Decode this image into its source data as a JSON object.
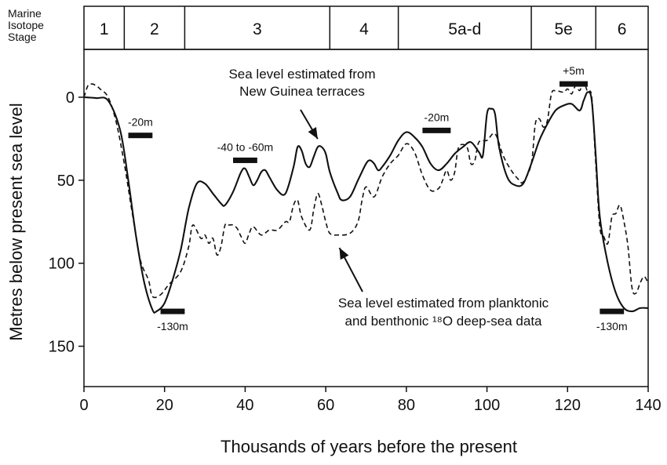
{
  "chart_data": {
    "type": "line",
    "stage_header": [
      "Marine",
      "Isotope",
      "Stage"
    ],
    "stages": [
      {
        "label": "1",
        "start": 0,
        "end": 10
      },
      {
        "label": "2",
        "start": 10,
        "end": 25
      },
      {
        "label": "3",
        "start": 25,
        "end": 61
      },
      {
        "label": "4",
        "start": 61,
        "end": 78
      },
      {
        "label": "5a-d",
        "start": 78,
        "end": 111
      },
      {
        "label": "5e",
        "start": 111,
        "end": 127
      },
      {
        "label": "6",
        "start": 127,
        "end": 140
      }
    ],
    "xlabel": "Thousands of years before the present",
    "ylabel": "Metres below present sea level",
    "xlim": [
      0,
      140
    ],
    "ylim": [
      0,
      175
    ],
    "y_top_extent": -30,
    "x_ticks": [
      0,
      20,
      40,
      60,
      80,
      100,
      120,
      140
    ],
    "y_ticks": [
      0,
      50,
      100,
      150
    ],
    "y_inverted": true,
    "series": [
      {
        "style": "solid",
        "points": [
          [
            0,
            0
          ],
          [
            3,
            0.5
          ],
          [
            6,
            2
          ],
          [
            9,
            20
          ],
          [
            11,
            50
          ],
          [
            13,
            85
          ],
          [
            15,
            112
          ],
          [
            17,
            128
          ],
          [
            18,
            129
          ],
          [
            20,
            124
          ],
          [
            22,
            110
          ],
          [
            24,
            92
          ],
          [
            26,
            67
          ],
          [
            28,
            52
          ],
          [
            30,
            52
          ],
          [
            32,
            58
          ],
          [
            34,
            64
          ],
          [
            35,
            65
          ],
          [
            37,
            57
          ],
          [
            39,
            45
          ],
          [
            40,
            43
          ],
          [
            41,
            48
          ],
          [
            42,
            53
          ],
          [
            43,
            50
          ],
          [
            44,
            45
          ],
          [
            45,
            44
          ],
          [
            46,
            48
          ],
          [
            48,
            56
          ],
          [
            50,
            58
          ],
          [
            52,
            42
          ],
          [
            53,
            30
          ],
          [
            54,
            32
          ],
          [
            55,
            40
          ],
          [
            56,
            42
          ],
          [
            57,
            36
          ],
          [
            58,
            30
          ],
          [
            59,
            30
          ],
          [
            60,
            34
          ],
          [
            61,
            45
          ],
          [
            63,
            58
          ],
          [
            64,
            62
          ],
          [
            66,
            60
          ],
          [
            68,
            50
          ],
          [
            70,
            40
          ],
          [
            71,
            38
          ],
          [
            72,
            40
          ],
          [
            73,
            44
          ],
          [
            74,
            42
          ],
          [
            76,
            35
          ],
          [
            78,
            26
          ],
          [
            80,
            21
          ],
          [
            82,
            24
          ],
          [
            84,
            30
          ],
          [
            86,
            40
          ],
          [
            88,
            44
          ],
          [
            90,
            40
          ],
          [
            92,
            34
          ],
          [
            94,
            30
          ],
          [
            96,
            27
          ],
          [
            98,
            33
          ],
          [
            99,
            35
          ],
          [
            100,
            10
          ],
          [
            101,
            7
          ],
          [
            102,
            10
          ],
          [
            103,
            30
          ],
          [
            105,
            48
          ],
          [
            107,
            53
          ],
          [
            109,
            52
          ],
          [
            111,
            40
          ],
          [
            113,
            26
          ],
          [
            115,
            16
          ],
          [
            117,
            8
          ],
          [
            119,
            5
          ],
          [
            121,
            4
          ],
          [
            123,
            8
          ],
          [
            124,
            2
          ],
          [
            125,
            -3
          ],
          [
            126,
            2
          ],
          [
            127,
            35
          ],
          [
            128,
            72
          ],
          [
            130,
            100
          ],
          [
            132,
            118
          ],
          [
            134,
            127
          ],
          [
            136,
            129
          ],
          [
            138,
            127
          ],
          [
            140,
            127
          ]
        ]
      },
      {
        "style": "dashed",
        "points": [
          [
            0,
            0
          ],
          [
            1,
            -7
          ],
          [
            2,
            -8
          ],
          [
            3,
            -7
          ],
          [
            4,
            -5
          ],
          [
            6,
            0
          ],
          [
            8,
            15
          ],
          [
            10,
            40
          ],
          [
            12,
            70
          ],
          [
            14,
            98
          ],
          [
            16,
            110
          ],
          [
            17,
            120
          ],
          [
            19,
            119
          ],
          [
            21,
            113
          ],
          [
            24,
            105
          ],
          [
            26,
            90
          ],
          [
            27,
            77
          ],
          [
            29,
            85
          ],
          [
            30,
            83
          ],
          [
            31,
            88
          ],
          [
            32,
            85
          ],
          [
            33,
            95
          ],
          [
            34,
            90
          ],
          [
            35,
            77
          ],
          [
            36,
            77
          ],
          [
            37,
            77
          ],
          [
            38,
            79
          ],
          [
            39,
            84
          ],
          [
            40,
            88
          ],
          [
            41,
            82
          ],
          [
            42,
            78
          ],
          [
            44,
            83
          ],
          [
            46,
            80
          ],
          [
            48,
            80
          ],
          [
            50,
            75
          ],
          [
            51,
            75
          ],
          [
            52,
            65
          ],
          [
            53,
            62
          ],
          [
            54,
            72
          ],
          [
            56,
            80
          ],
          [
            57,
            68
          ],
          [
            58,
            58
          ],
          [
            59,
            65
          ],
          [
            60,
            75
          ],
          [
            61,
            82
          ],
          [
            63,
            83
          ],
          [
            66,
            82
          ],
          [
            68,
            75
          ],
          [
            69,
            62
          ],
          [
            70,
            54
          ],
          [
            72,
            60
          ],
          [
            74,
            48
          ],
          [
            76,
            40
          ],
          [
            78,
            35
          ],
          [
            80,
            28
          ],
          [
            82,
            33
          ],
          [
            84,
            47
          ],
          [
            86,
            56
          ],
          [
            88,
            55
          ],
          [
            89,
            50
          ],
          [
            90,
            44
          ],
          [
            91,
            50
          ],
          [
            92,
            45
          ],
          [
            93,
            30
          ],
          [
            95,
            30
          ],
          [
            96,
            40
          ],
          [
            97,
            38
          ],
          [
            98,
            27
          ],
          [
            100,
            26
          ],
          [
            102,
            22
          ],
          [
            104,
            35
          ],
          [
            106,
            44
          ],
          [
            108,
            50
          ],
          [
            109,
            51
          ],
          [
            111,
            40
          ],
          [
            112,
            16
          ],
          [
            113,
            13
          ],
          [
            114,
            18
          ],
          [
            115,
            14
          ],
          [
            116,
            -2
          ],
          [
            117,
            -4
          ],
          [
            119,
            -3
          ],
          [
            120,
            -5
          ],
          [
            121,
            -2
          ],
          [
            122,
            -7
          ],
          [
            123,
            -4
          ],
          [
            124,
            -9
          ],
          [
            125,
            -3
          ],
          [
            126,
            0
          ],
          [
            127,
            40
          ],
          [
            128,
            78
          ],
          [
            129,
            84
          ],
          [
            130,
            88
          ],
          [
            131,
            72
          ],
          [
            132,
            70
          ],
          [
            133,
            65
          ],
          [
            134,
            75
          ],
          [
            135,
            90
          ],
          [
            136,
            115
          ],
          [
            137,
            118
          ],
          [
            138,
            112
          ],
          [
            139,
            108
          ],
          [
            140,
            112
          ]
        ]
      }
    ],
    "bars": [
      {
        "label": "-20m",
        "x1": 11,
        "x2": 17,
        "y": 23
      },
      {
        "label": "-40 to -60m",
        "x1": 37,
        "x2": 43,
        "y": 38
      },
      {
        "label": "-130m",
        "x1": 19,
        "x2": 25,
        "y": 129
      },
      {
        "label": "-20m",
        "x1": 84,
        "x2": 91,
        "y": 20
      },
      {
        "label": "+5m",
        "x1": 118,
        "x2": 125,
        "y": -8
      },
      {
        "label": "-130m",
        "x1": 128,
        "x2": 134,
        "y": 129
      }
    ],
    "annotations": [
      {
        "lines": [
          "Sea level estimated from",
          "New Guinea terraces"
        ],
        "arrow_to": [
          58,
          27
        ]
      },
      {
        "lines": [
          "Sea level estimated from planktonic",
          "and benthonic ¹⁸O deep-sea data"
        ],
        "arrow_to": [
          63,
          86
        ]
      }
    ]
  }
}
